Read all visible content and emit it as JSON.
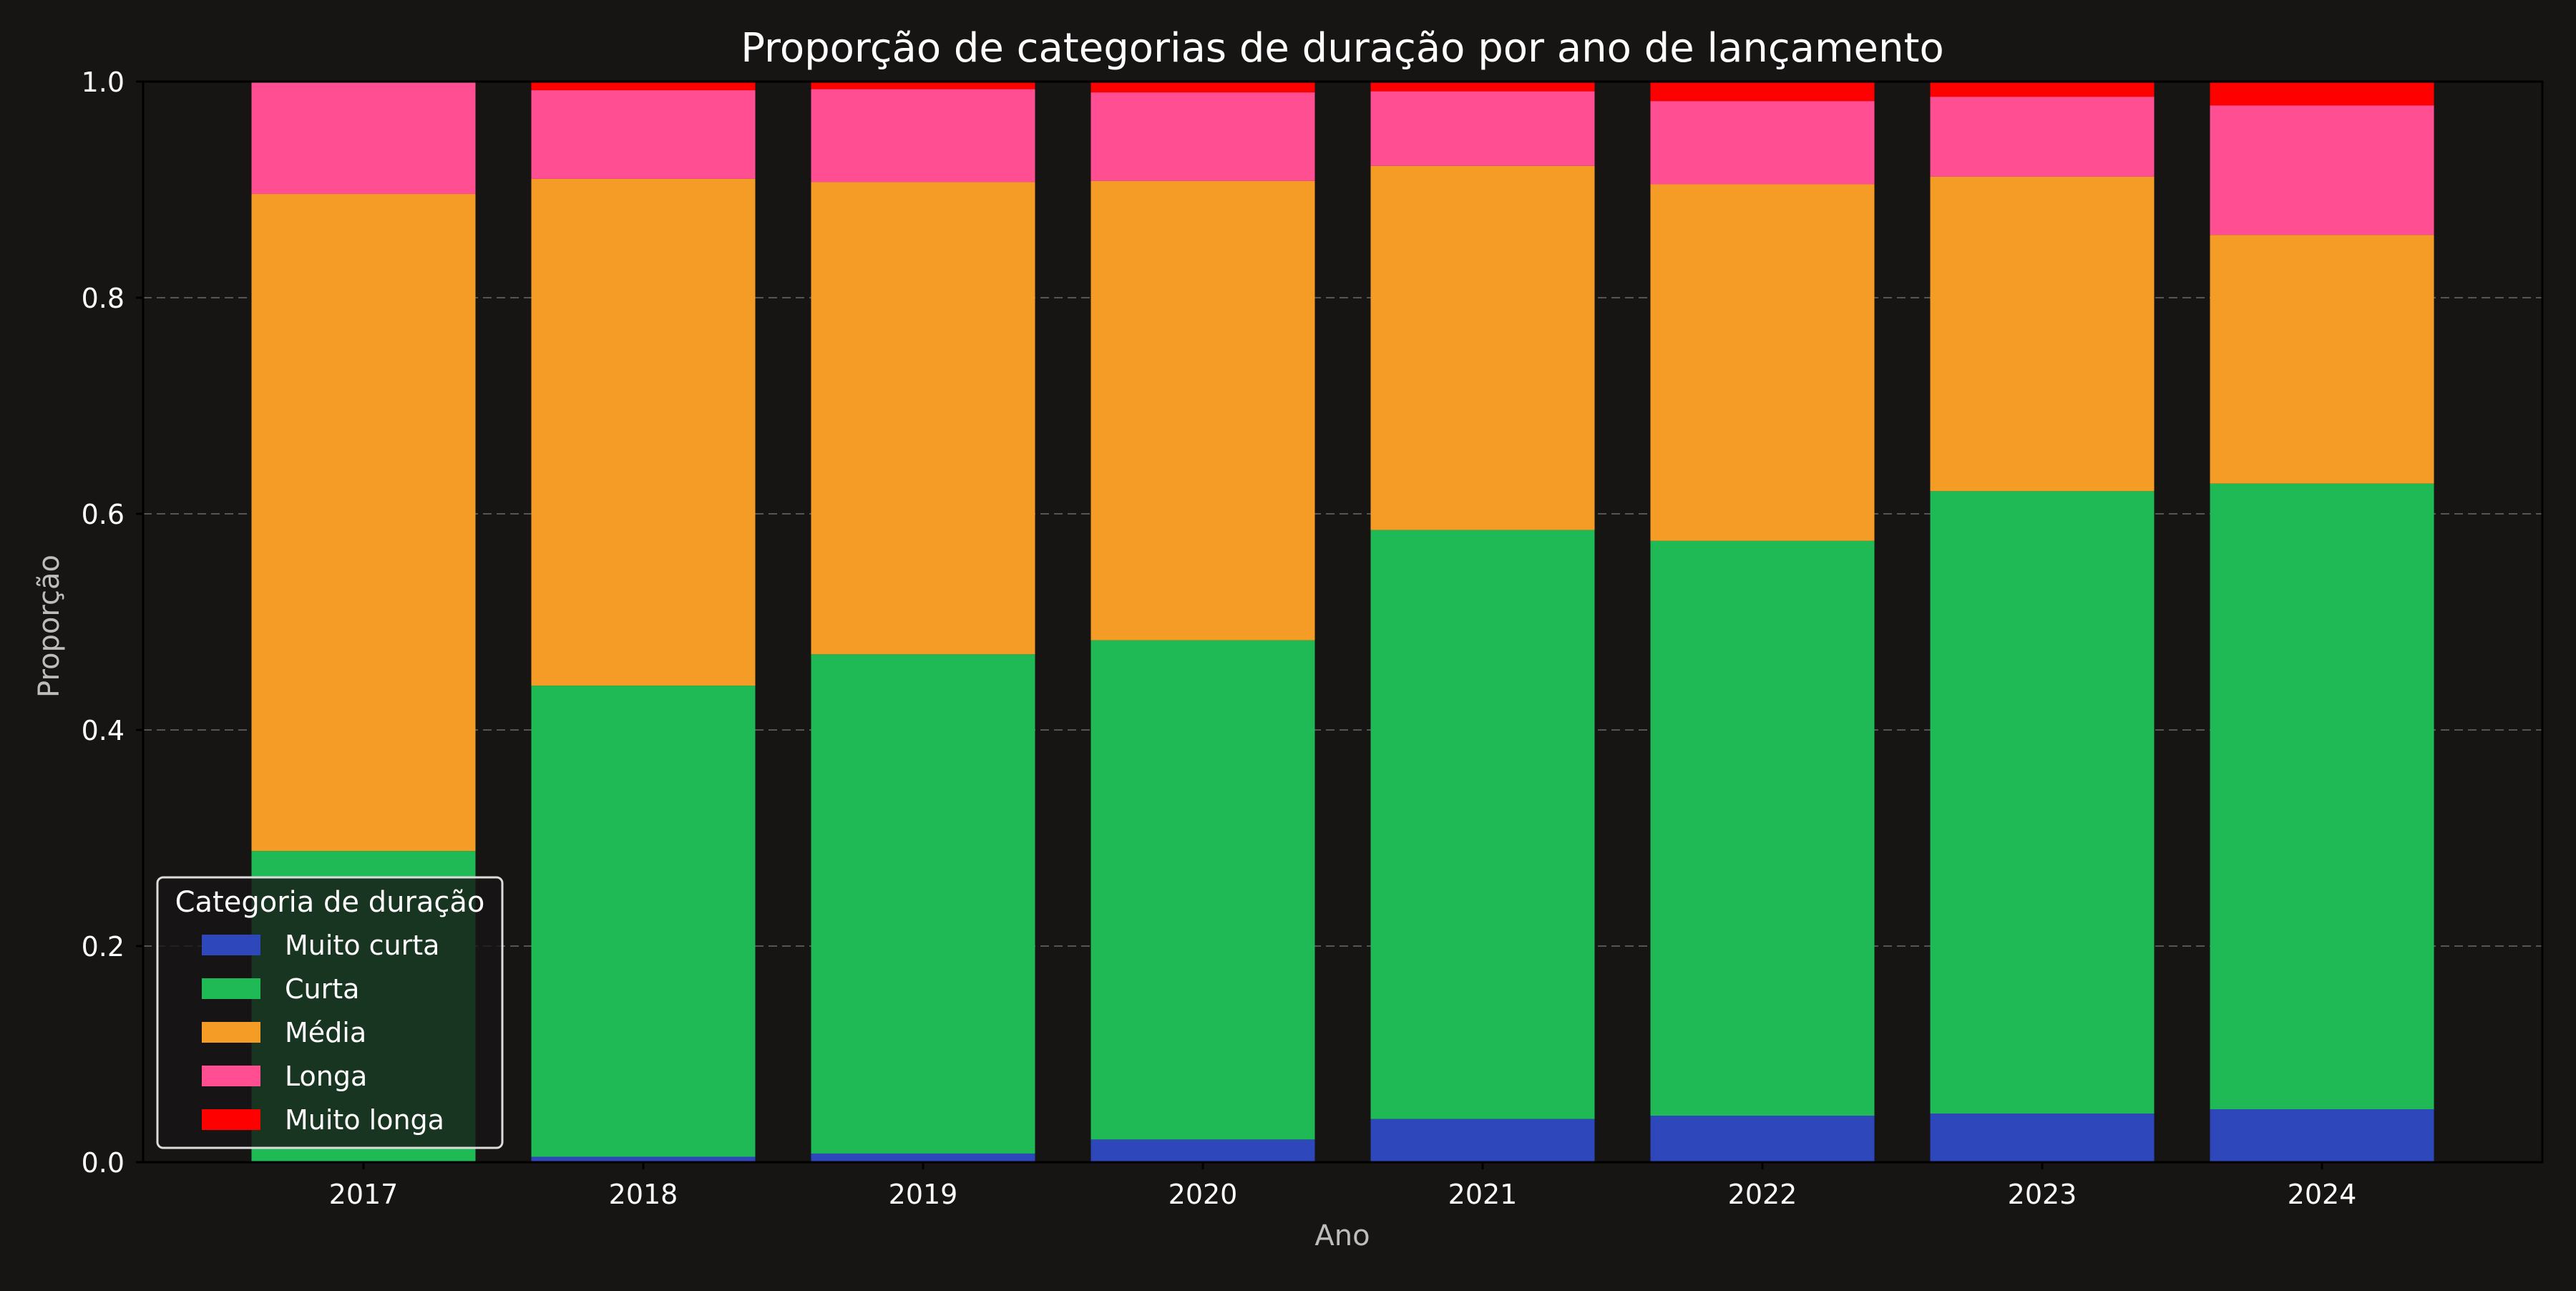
{
  "chart_data": {
    "type": "bar",
    "stacked": true,
    "title": "Proporção de categorias de duração por ano de lançamento",
    "xlabel": "Ano",
    "ylabel": "Proporção",
    "ylim": [
      0,
      1
    ],
    "yticks": [
      "0.0",
      "0.2",
      "0.4",
      "0.6",
      "0.8",
      "1.0"
    ],
    "grid": "horizontal dashed",
    "categories": [
      "2017",
      "2018",
      "2019",
      "2020",
      "2021",
      "2022",
      "2023",
      "2024"
    ],
    "legend": {
      "title": "Categoria de duração",
      "placement": "bottom-left"
    },
    "series": [
      {
        "name": "Muito curta",
        "color": "#2e48bb",
        "values": [
          0.0,
          0.005,
          0.008,
          0.021,
          0.04,
          0.043,
          0.045,
          0.049
        ]
      },
      {
        "name": "Curta",
        "color": "#1fba55",
        "values": [
          0.288,
          0.436,
          0.462,
          0.462,
          0.545,
          0.532,
          0.576,
          0.579
        ]
      },
      {
        "name": "Média",
        "color": "#f59c26",
        "values": [
          0.608,
          0.469,
          0.437,
          0.425,
          0.337,
          0.33,
          0.291,
          0.23
        ]
      },
      {
        "name": "Longa",
        "color": "#ff4f92",
        "values": [
          0.104,
          0.082,
          0.086,
          0.082,
          0.069,
          0.077,
          0.074,
          0.12
        ]
      },
      {
        "name": "Muito longa",
        "color": "#ff0000",
        "values": [
          0.0,
          0.008,
          0.007,
          0.01,
          0.009,
          0.018,
          0.014,
          0.022
        ]
      }
    ]
  },
  "theme": {
    "background": "#171414",
    "text_color": "#ffffff",
    "label_color": "#bdbdbd",
    "grid_color": "#555555"
  }
}
